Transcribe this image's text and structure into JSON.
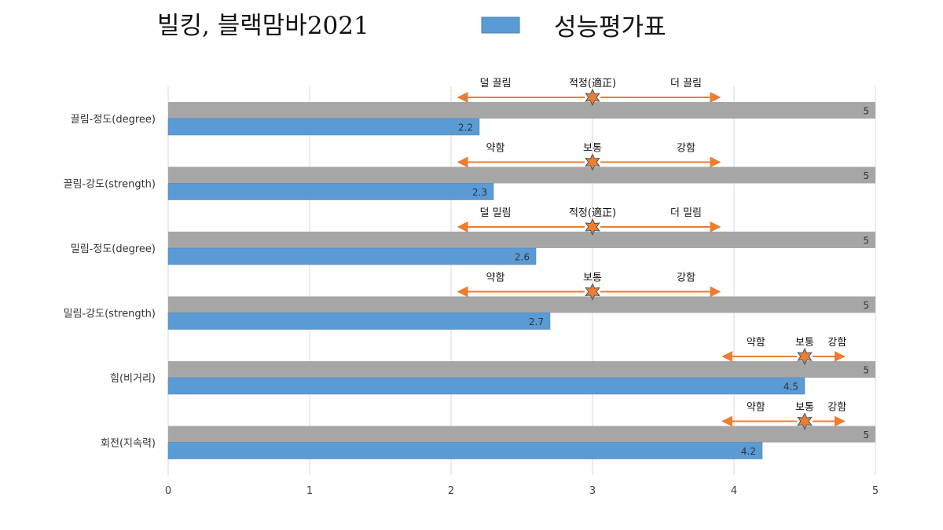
{
  "chart_data": {
    "type": "bar",
    "orientation": "horizontal",
    "title": "빌킹, 블랙맘바2021",
    "categories": [
      "끌림-정도(degree)",
      "끌림-강도(strength)",
      "밀림-정도(degree)",
      "밀림-강도(strength)",
      "힘(비거리)",
      "회전(지속력)"
    ],
    "series": [
      {
        "values": [
          5,
          5,
          5,
          5,
          5,
          5
        ],
        "color": "#a6a6a6"
      },
      {
        "name": "성능평가표",
        "values": [
          2.2,
          2.3,
          2.6,
          2.7,
          4.5,
          4.2
        ],
        "color": "#5b9bd5"
      }
    ],
    "xlim": [
      0,
      5
    ],
    "xticks": [
      "0",
      "1",
      "2",
      "3",
      "4",
      "5"
    ],
    "grid": true,
    "legend": "top",
    "annotations": [
      {
        "left": "덜 끌림",
        "center": "적정(適正)",
        "right": "더 끌림",
        "marker": 3,
        "range": [
          2.05,
          3.9
        ]
      },
      {
        "left": "약함",
        "center": "보통",
        "right": "강함",
        "marker": 3,
        "range": [
          2.05,
          3.9
        ]
      },
      {
        "left": "덜 밀림",
        "center": "적정(適正)",
        "right": "더 밀림",
        "marker": 3,
        "range": [
          2.05,
          3.9
        ]
      },
      {
        "left": "약함",
        "center": "보통",
        "right": "강함",
        "marker": 3,
        "range": [
          2.05,
          3.9
        ]
      },
      {
        "left": "약함",
        "center": "보통",
        "right": "강함",
        "marker": 4.5,
        "range": [
          3.92,
          4.78
        ]
      },
      {
        "left": "약함",
        "center": "보통",
        "right": "강함",
        "marker": 4.5,
        "range": [
          3.92,
          4.78
        ]
      }
    ],
    "arrow_color": "#ed7d31",
    "marker_color": "#ed7d31"
  }
}
